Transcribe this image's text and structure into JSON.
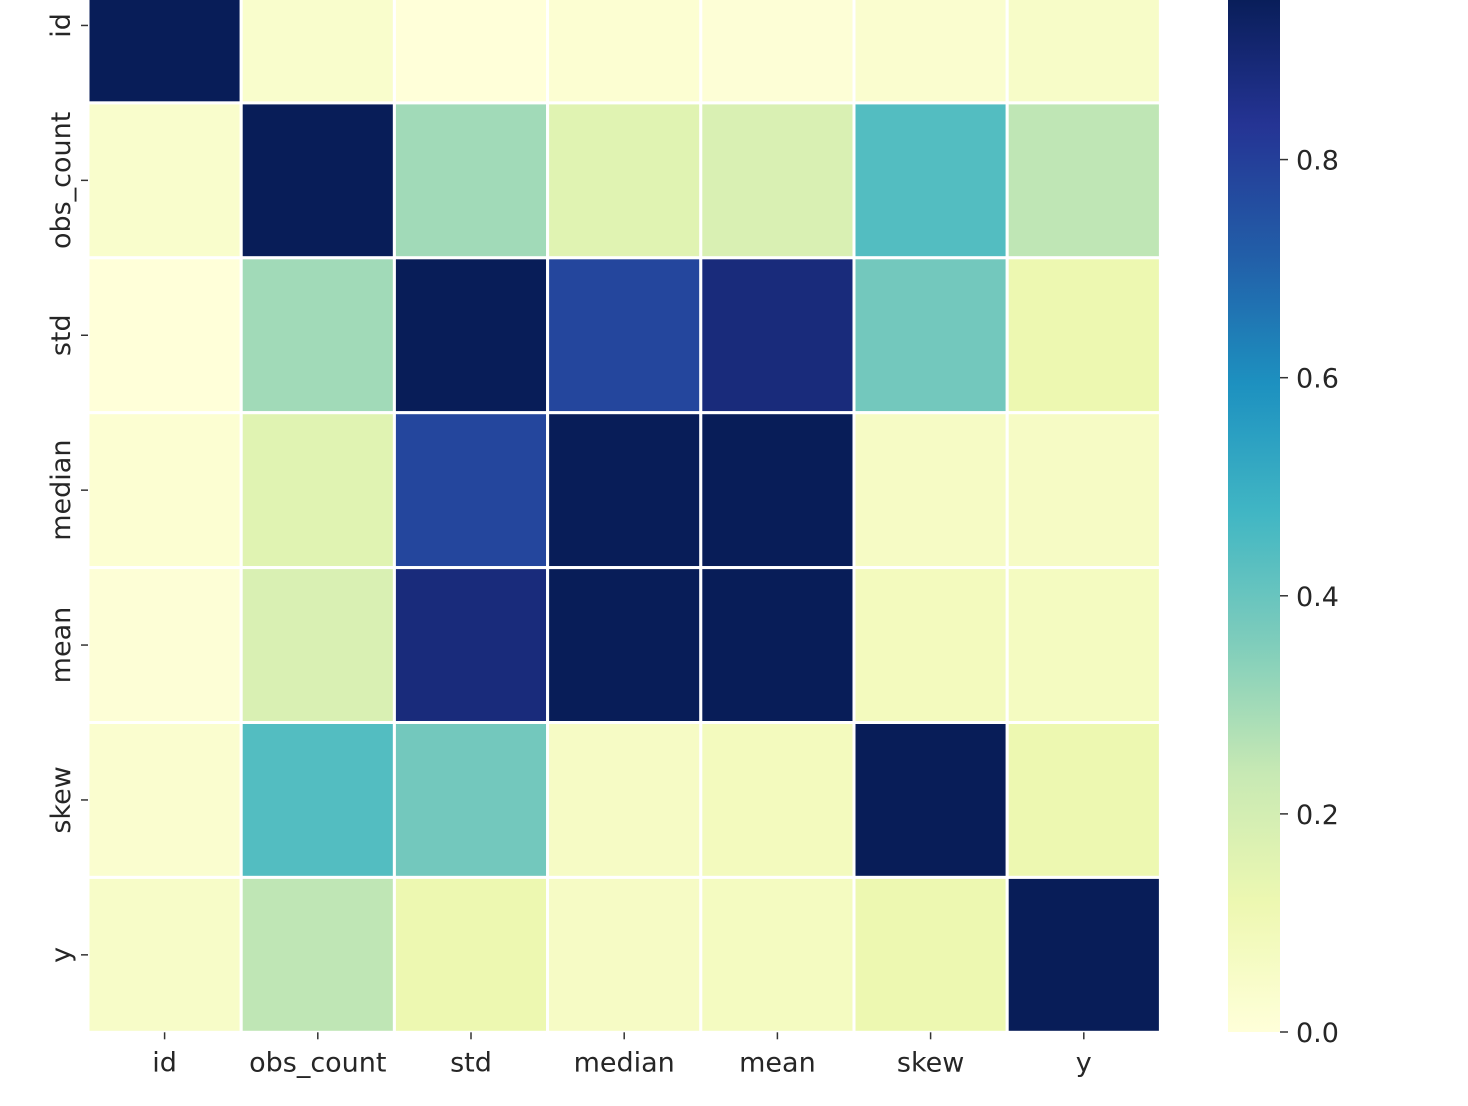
{
  "chart_data": {
    "type": "heatmap",
    "title": "",
    "xlabel": "",
    "ylabel": "",
    "rows": [
      "id",
      "obs_count",
      "std",
      "median",
      "mean",
      "skew",
      "y"
    ],
    "columns": [
      "id",
      "obs_count",
      "std",
      "median",
      "mean",
      "skew",
      "y"
    ],
    "values": [
      [
        1.0,
        0.04,
        0.0,
        0.02,
        0.01,
        0.03,
        0.05
      ],
      [
        0.04,
        1.0,
        0.3,
        0.16,
        0.18,
        0.44,
        0.25
      ],
      [
        0.0,
        0.3,
        1.0,
        0.78,
        0.88,
        0.38,
        0.12
      ],
      [
        0.02,
        0.16,
        0.78,
        1.0,
        0.96,
        0.06,
        0.06
      ],
      [
        0.01,
        0.18,
        0.88,
        0.96,
        1.0,
        0.08,
        0.07
      ],
      [
        0.03,
        0.44,
        0.38,
        0.06,
        0.08,
        1.0,
        0.12
      ],
      [
        0.05,
        0.25,
        0.12,
        0.06,
        0.07,
        0.12,
        1.0
      ]
    ],
    "colormap": "YlGnBu",
    "vmin": 0.0,
    "vmax": 0.95,
    "colorbar_ticks": [
      "0.0",
      "0.2",
      "0.4",
      "0.6",
      "0.8"
    ],
    "colorbar_tick_values": [
      0.0,
      0.2,
      0.4,
      0.6,
      0.8
    ],
    "grid_line_color": "#ffffff"
  }
}
